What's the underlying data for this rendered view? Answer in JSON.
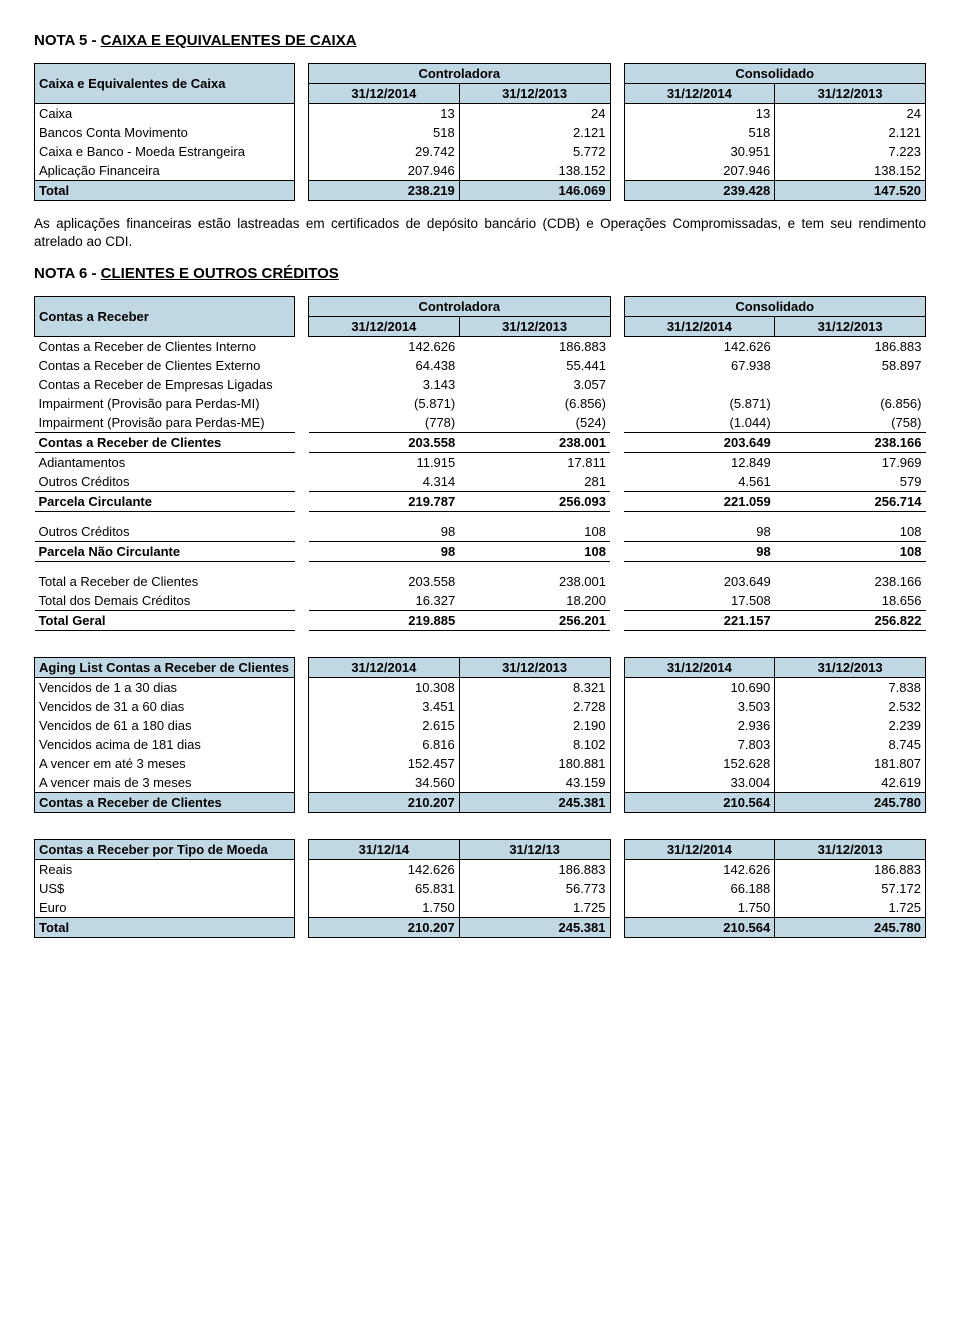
{
  "colors": {
    "header_fill": "#c0d8e4",
    "border": "#000000",
    "background": "#ffffff",
    "text": "#000000"
  },
  "nota5": {
    "title_prefix": "NOTA 5 - ",
    "title_underlined": "CAIXA E EQUIVALENTES DE CAIXA",
    "row_header_label": "Caixa e Equivalentes de Caixa",
    "group_a": "Controladora",
    "group_b": "Consolidado",
    "col_dates": [
      "31/12/2014",
      "31/12/2013",
      "31/12/2014",
      "31/12/2013"
    ],
    "rows": [
      {
        "label": "Caixa",
        "vals": [
          "13",
          "24",
          "13",
          "24"
        ]
      },
      {
        "label": "Bancos Conta Movimento",
        "vals": [
          "518",
          "2.121",
          "518",
          "2.121"
        ]
      },
      {
        "label": "Caixa e Banco - Moeda Estrangeira",
        "vals": [
          "29.742",
          "5.772",
          "30.951",
          "7.223"
        ]
      },
      {
        "label": "Aplicação Financeira",
        "vals": [
          "207.946",
          "138.152",
          "207.946",
          "138.152"
        ]
      }
    ],
    "total": {
      "label": "Total",
      "vals": [
        "238.219",
        "146.069",
        "239.428",
        "147.520"
      ]
    },
    "paragraph": "As aplicações financeiras estão lastreadas em certificados de depósito bancário (CDB) e Operações Compromissadas, e tem seu rendimento atrelado ao CDI."
  },
  "nota6": {
    "title_prefix": "NOTA 6 - ",
    "title_underlined": "CLIENTES E OUTROS CRÉDITOS",
    "row_header_label": "Contas a Receber",
    "group_a": "Controladora",
    "group_b": "Consolidado",
    "col_dates": [
      "31/12/2014",
      "31/12/2013",
      "31/12/2014",
      "31/12/2013"
    ],
    "rows1": [
      {
        "label": "Contas a Receber de Clientes Interno",
        "vals": [
          "142.626",
          "186.883",
          "142.626",
          "186.883"
        ]
      },
      {
        "label": "Contas a Receber de Clientes Externo",
        "vals": [
          "64.438",
          "55.441",
          "67.938",
          "58.897"
        ]
      },
      {
        "label": "Contas a Receber de Empresas Ligadas",
        "vals": [
          "3.143",
          "3.057",
          "",
          ""
        ]
      },
      {
        "label": "Impairment (Provisão para Perdas-MI)",
        "vals": [
          "(5.871)",
          "(6.856)",
          "(5.871)",
          "(6.856)"
        ]
      },
      {
        "label": "Impairment (Provisão para Perdas-ME)",
        "vals": [
          "(778)",
          "(524)",
          "(1.044)",
          "(758)"
        ]
      }
    ],
    "bold1": {
      "label": "Contas a Receber de Clientes",
      "vals": [
        "203.558",
        "238.001",
        "203.649",
        "238.166"
      ]
    },
    "rows2": [
      {
        "label": "Adiantamentos",
        "vals": [
          "11.915",
          "17.811",
          "12.849",
          "17.969"
        ]
      },
      {
        "label": "Outros Créditos",
        "vals": [
          "4.314",
          "281",
          "4.561",
          "579"
        ]
      }
    ],
    "bold2": {
      "label": "Parcela Circulante",
      "vals": [
        "219.787",
        "256.093",
        "221.059",
        "256.714"
      ]
    },
    "rows3": [
      {
        "label": "Outros Créditos",
        "vals": [
          "98",
          "108",
          "98",
          "108"
        ]
      }
    ],
    "bold3": {
      "label": "Parcela Não Circulante",
      "vals": [
        "98",
        "108",
        "98",
        "108"
      ]
    },
    "rows4": [
      {
        "label": "Total a Receber de Clientes",
        "vals": [
          "203.558",
          "238.001",
          "203.649",
          "238.166"
        ]
      },
      {
        "label": "Total dos Demais Créditos",
        "vals": [
          "16.327",
          "18.200",
          "17.508",
          "18.656"
        ]
      }
    ],
    "bold4": {
      "label": "Total Geral",
      "vals": [
        "219.885",
        "256.201",
        "221.157",
        "256.822"
      ]
    },
    "aging_header": {
      "label": "Aging List Contas a Receber de Clientes",
      "dates": [
        "31/12/2014",
        "31/12/2013",
        "31/12/2014",
        "31/12/2013"
      ]
    },
    "aging_rows": [
      {
        "label": "Vencidos de 1 a 30 dias",
        "vals": [
          "10.308",
          "8.321",
          "10.690",
          "7.838"
        ]
      },
      {
        "label": "Vencidos de 31 a 60 dias",
        "vals": [
          "3.451",
          "2.728",
          "3.503",
          "2.532"
        ]
      },
      {
        "label": "Vencidos de 61 a 180 dias",
        "vals": [
          "2.615",
          "2.190",
          "2.936",
          "2.239"
        ]
      },
      {
        "label": "Vencidos acima de 181 dias",
        "vals": [
          "6.816",
          "8.102",
          "7.803",
          "8.745"
        ]
      },
      {
        "label": "A vencer em até 3 meses",
        "vals": [
          "152.457",
          "180.881",
          "152.628",
          "181.807"
        ]
      },
      {
        "label": "A vencer mais de 3 meses",
        "vals": [
          "34.560",
          "43.159",
          "33.004",
          "42.619"
        ]
      }
    ],
    "aging_total": {
      "label": "Contas a Receber de Clientes",
      "vals": [
        "210.207",
        "245.381",
        "210.564",
        "245.780"
      ]
    },
    "tipo_header": {
      "label": "Contas a Receber por Tipo de Moeda",
      "dates": [
        "31/12/14",
        "31/12/13",
        "31/12/2014",
        "31/12/2013"
      ]
    },
    "tipo_rows": [
      {
        "label": "Reais",
        "vals": [
          "142.626",
          "186.883",
          "142.626",
          "186.883"
        ]
      },
      {
        "label": "US$",
        "vals": [
          "65.831",
          "56.773",
          "66.188",
          "57.172"
        ]
      },
      {
        "label": "Euro",
        "vals": [
          "1.750",
          "1.725",
          "1.750",
          "1.725"
        ]
      }
    ],
    "tipo_total": {
      "label": "Total",
      "vals": [
        "210.207",
        "245.381",
        "210.564",
        "245.780"
      ]
    }
  }
}
